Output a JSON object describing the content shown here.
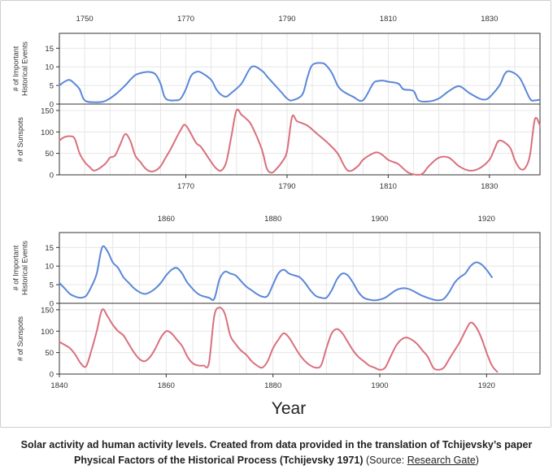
{
  "chart_data": [
    {
      "type": "line",
      "x_range": [
        1745,
        1840
      ],
      "top_ticks": [
        1750,
        1770,
        1790,
        1810,
        1830
      ],
      "bottom_ticks": [
        1770,
        1790,
        1810,
        1830
      ],
      "panels": [
        {
          "ylabel": [
            "# of Important",
            "Historical Events"
          ],
          "ylim": [
            0,
            19
          ],
          "yticks": [
            0,
            5,
            10,
            15
          ],
          "color": "#5b87d8",
          "series": {
            "x": [
              1745,
              1746,
              1747,
              1748,
              1749,
              1750,
              1752,
              1754,
              1756,
              1758,
              1759,
              1760,
              1761,
              1762,
              1763,
              1764,
              1765,
              1766,
              1768,
              1769,
              1770,
              1771,
              1772,
              1773,
              1775,
              1776,
              1777,
              1778,
              1779,
              1781,
              1783,
              1785,
              1786,
              1787,
              1788,
              1789,
              1790,
              1791,
              1793,
              1794,
              1795,
              1797,
              1798,
              1799,
              1800,
              1801,
              1803,
              1805,
              1807,
              1808,
              1809,
              1810,
              1812,
              1813,
              1815,
              1816,
              1818,
              1820,
              1822,
              1824,
              1826,
              1828,
              1829,
              1830,
              1832,
              1833,
              1834,
              1836,
              1838,
              1839,
              1840
            ],
            "y": [
              5.0,
              6.0,
              6.5,
              5.5,
              4.0,
              1.0,
              0.5,
              0.8,
              2.5,
              5.0,
              6.5,
              7.8,
              8.3,
              8.6,
              8.6,
              8.0,
              5.5,
              1.5,
              1.0,
              1.5,
              4.0,
              7.5,
              8.6,
              8.5,
              6.5,
              4.0,
              2.5,
              2.0,
              3.0,
              5.5,
              10.0,
              9.0,
              7.5,
              6.0,
              4.5,
              3.0,
              1.5,
              1.0,
              2.5,
              7.0,
              10.5,
              11.0,
              10.0,
              8.0,
              5.0,
              3.5,
              2.0,
              1.0,
              5.5,
              6.2,
              6.3,
              6.0,
              5.5,
              4.0,
              3.5,
              1.0,
              0.7,
              1.5,
              3.5,
              4.8,
              3.0,
              1.5,
              1.2,
              1.8,
              5.0,
              8.0,
              8.8,
              7.0,
              1.5,
              1.0,
              1.2
            ]
          }
        },
        {
          "ylabel": [
            "# of Sunspots"
          ],
          "ylim": [
            0,
            165
          ],
          "yticks": [
            0,
            50,
            100,
            150
          ],
          "color": "#d9707e",
          "series": {
            "x": [
              1745,
              1746,
              1747,
              1748,
              1749,
              1750,
              1751,
              1752,
              1754,
              1755,
              1756,
              1757,
              1758,
              1759,
              1760,
              1761,
              1762,
              1763,
              1764,
              1765,
              1766,
              1767,
              1769,
              1770,
              1772,
              1773,
              1775,
              1776,
              1777,
              1778,
              1779,
              1780,
              1781,
              1782,
              1783,
              1785,
              1786,
              1787,
              1788,
              1789,
              1790,
              1791,
              1792,
              1794,
              1796,
              1798,
              1800,
              1802,
              1804,
              1805,
              1807,
              1808,
              1809,
              1810,
              1811,
              1812,
              1814,
              1816,
              1817,
              1818,
              1820,
              1822,
              1824,
              1826,
              1828,
              1830,
              1831,
              1832,
              1834,
              1835,
              1836,
              1837,
              1838,
              1839,
              1840
            ],
            "y": [
              80,
              88,
              90,
              85,
              50,
              30,
              18,
              10,
              25,
              40,
              45,
              70,
              95,
              80,
              45,
              30,
              15,
              8,
              10,
              20,
              40,
              60,
              105,
              115,
              75,
              65,
              30,
              15,
              10,
              30,
              90,
              150,
              140,
              130,
              115,
              60,
              15,
              5,
              15,
              30,
              55,
              135,
              125,
              115,
              95,
              75,
              50,
              10,
              20,
              35,
              50,
              52,
              45,
              35,
              30,
              25,
              5,
              0,
              5,
              20,
              40,
              40,
              20,
              10,
              15,
              35,
              60,
              80,
              65,
              35,
              15,
              15,
              45,
              130,
              115
            ]
          }
        }
      ]
    },
    {
      "type": "line",
      "x_range": [
        1840,
        1930
      ],
      "top_ticks": [
        1860,
        1880,
        1900,
        1920
      ],
      "bottom_ticks": [
        1840,
        1860,
        1880,
        1900,
        1920
      ],
      "panels": [
        {
          "ylabel": [
            "# of Important",
            "Historical Events"
          ],
          "ylim": [
            0,
            19
          ],
          "yticks": [
            0,
            5,
            10,
            15
          ],
          "color": "#5b87d8",
          "series": {
            "x": [
              1840,
              1841,
              1842,
              1843,
              1844,
              1845,
              1846,
              1847,
              1848,
              1849,
              1850,
              1851,
              1852,
              1853,
              1854,
              1855,
              1856,
              1857,
              1858,
              1859,
              1860,
              1861,
              1862,
              1863,
              1864,
              1866,
              1868,
              1869,
              1870,
              1871,
              1872,
              1873,
              1874,
              1875,
              1876,
              1877,
              1878,
              1879,
              1880,
              1881,
              1882,
              1883,
              1884,
              1885,
              1886,
              1887,
              1888,
              1889,
              1890,
              1891,
              1892,
              1893,
              1894,
              1895,
              1896,
              1897,
              1898,
              1899,
              1900,
              1901,
              1902,
              1903,
              1904,
              1905,
              1906,
              1908,
              1910,
              1911,
              1912,
              1913,
              1914,
              1915,
              1916,
              1917,
              1918,
              1919,
              1920,
              1921
            ],
            "y": [
              5.5,
              4.0,
              2.5,
              1.8,
              1.5,
              2.0,
              4.5,
              8.0,
              15.0,
              14.0,
              11.0,
              9.5,
              7.0,
              5.5,
              4.0,
              3.0,
              2.5,
              3.0,
              4.0,
              5.5,
              7.5,
              9.0,
              9.5,
              8.0,
              5.5,
              2.5,
              1.5,
              1.2,
              6.5,
              8.5,
              8.0,
              7.5,
              6.0,
              4.5,
              3.5,
              2.5,
              1.8,
              2.0,
              5.0,
              8.0,
              9.0,
              8.0,
              7.5,
              7.0,
              5.5,
              3.5,
              2.0,
              1.5,
              1.5,
              3.5,
              6.5,
              8.0,
              7.5,
              5.5,
              3.0,
              1.5,
              1.0,
              0.8,
              1.0,
              1.5,
              2.5,
              3.5,
              4.0,
              4.0,
              3.5,
              2.0,
              1.0,
              0.8,
              1.2,
              3.0,
              5.5,
              7.0,
              8.0,
              10.0,
              11.0,
              10.5,
              9.0,
              7.0
            ]
          }
        },
        {
          "ylabel": [
            "# of Sunspots"
          ],
          "ylim": [
            0,
            165
          ],
          "yticks": [
            0,
            50,
            100,
            150
          ],
          "color": "#d9707e",
          "series": {
            "x": [
              1840,
              1841,
              1842,
              1843,
              1844,
              1845,
              1846,
              1847,
              1848,
              1849,
              1850,
              1851,
              1852,
              1853,
              1854,
              1855,
              1856,
              1857,
              1858,
              1859,
              1860,
              1861,
              1862,
              1863,
              1864,
              1865,
              1866,
              1867,
              1868,
              1869,
              1870,
              1871,
              1872,
              1873,
              1874,
              1875,
              1876,
              1877,
              1878,
              1879,
              1880,
              1881,
              1882,
              1883,
              1884,
              1885,
              1886,
              1887,
              1888,
              1889,
              1890,
              1891,
              1892,
              1893,
              1894,
              1895,
              1896,
              1897,
              1898,
              1899,
              1900,
              1901,
              1902,
              1903,
              1904,
              1905,
              1906,
              1907,
              1908,
              1909,
              1910,
              1911,
              1912,
              1913,
              1914,
              1915,
              1916,
              1917,
              1918,
              1919,
              1920,
              1921,
              1922
            ],
            "y": [
              75,
              68,
              60,
              45,
              25,
              18,
              55,
              100,
              150,
              135,
              115,
              100,
              90,
              70,
              50,
              35,
              30,
              40,
              60,
              85,
              100,
              95,
              80,
              65,
              40,
              25,
              20,
              20,
              25,
              135,
              155,
              140,
              90,
              70,
              55,
              45,
              30,
              20,
              15,
              30,
              60,
              80,
              95,
              85,
              65,
              45,
              30,
              20,
              15,
              20,
              60,
              95,
              105,
              95,
              75,
              55,
              40,
              30,
              20,
              15,
              10,
              15,
              40,
              65,
              80,
              85,
              80,
              70,
              55,
              40,
              15,
              10,
              15,
              35,
              55,
              75,
              100,
              120,
              110,
              85,
              50,
              20,
              5
            ]
          }
        }
      ]
    }
  ],
  "axis_title": "Year",
  "caption": {
    "bold_text": "Solar activity ad human activity levels. Created from data provided in the translation of Tchijevsky’s paper Physical Factors of the Historical Process (Tchijevsky 1971)",
    "source_prefix": " (Source: ",
    "source_link": "Research Gate",
    "source_suffix": ")"
  }
}
